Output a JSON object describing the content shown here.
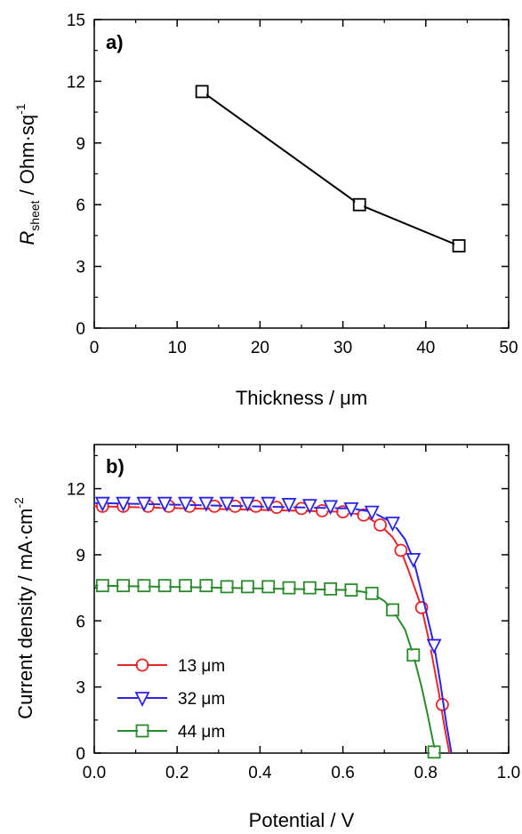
{
  "chart_data": [
    {
      "type": "line",
      "panel_label": "a)",
      "xlabel": "Thickness / μm",
      "ylabel": {
        "italic": "R",
        "subscript": "sheet",
        "rest": " / Ohm·sq",
        "superscript": "-1"
      },
      "xlim": [
        0,
        50
      ],
      "ylim": [
        0,
        15
      ],
      "xticks": [
        "0",
        "10",
        "20",
        "30",
        "40",
        "50"
      ],
      "yticks": [
        "0",
        "3",
        "6",
        "9",
        "12",
        "15"
      ],
      "grid": false,
      "series": [
        {
          "marker": "square",
          "color": "#000000",
          "x": [
            13,
            32,
            44
          ],
          "y": [
            11.5,
            6.0,
            4.0
          ]
        }
      ]
    },
    {
      "type": "line",
      "panel_label": "b)",
      "xlabel": "Potential / V",
      "ylabel": {
        "rest": "Current density / mA·cm",
        "superscript": "-2"
      },
      "xlim": [
        0.0,
        1.0
      ],
      "ylim": [
        0,
        14
      ],
      "xticks": [
        "0.0",
        "0.2",
        "0.4",
        "0.6",
        "0.8",
        "1.0"
      ],
      "yticks": [
        "0",
        "3",
        "6",
        "9",
        "12"
      ],
      "grid": false,
      "legend_position": "bottom-left",
      "series": [
        {
          "name": "13 μm",
          "marker": "circle",
          "color": "#e8262a",
          "x": [
            0.02,
            0.07,
            0.13,
            0.18,
            0.23,
            0.29,
            0.34,
            0.39,
            0.44,
            0.5,
            0.55,
            0.6,
            0.65,
            0.69,
            0.74,
            0.79,
            0.84
          ],
          "y": [
            11.2,
            11.2,
            11.2,
            11.2,
            11.2,
            11.2,
            11.2,
            11.2,
            11.15,
            11.1,
            11.0,
            10.95,
            10.8,
            10.35,
            9.2,
            6.6,
            2.2
          ],
          "curve_x": [
            0.0,
            0.6,
            0.65,
            0.69,
            0.72,
            0.74,
            0.76,
            0.79,
            0.81,
            0.83,
            0.845,
            0.857
          ],
          "curve_y": [
            11.2,
            10.95,
            10.8,
            10.35,
            9.8,
            9.2,
            8.2,
            6.6,
            4.9,
            2.9,
            1.2,
            0
          ]
        },
        {
          "name": "32 μm",
          "marker": "triangle-down",
          "color": "#2a24e6",
          "x": [
            0.02,
            0.07,
            0.12,
            0.17,
            0.22,
            0.27,
            0.32,
            0.37,
            0.42,
            0.47,
            0.52,
            0.57,
            0.62,
            0.67,
            0.72,
            0.77,
            0.82
          ],
          "y": [
            11.35,
            11.35,
            11.35,
            11.35,
            11.35,
            11.35,
            11.35,
            11.35,
            11.35,
            11.3,
            11.25,
            11.2,
            11.1,
            10.95,
            10.45,
            8.8,
            4.9
          ],
          "curve_x": [
            0.0,
            0.62,
            0.67,
            0.72,
            0.75,
            0.77,
            0.79,
            0.82,
            0.835,
            0.85,
            0.862
          ],
          "curve_y": [
            11.35,
            11.1,
            10.95,
            10.45,
            9.7,
            8.8,
            7.3,
            4.9,
            3.2,
            1.3,
            0
          ]
        },
        {
          "name": "44 μm",
          "marker": "square",
          "color": "#2b8a2b",
          "x": [
            0.02,
            0.07,
            0.12,
            0.17,
            0.22,
            0.27,
            0.32,
            0.37,
            0.42,
            0.47,
            0.52,
            0.57,
            0.62,
            0.67,
            0.72,
            0.77,
            0.82
          ],
          "y": [
            7.6,
            7.6,
            7.6,
            7.6,
            7.6,
            7.6,
            7.55,
            7.55,
            7.55,
            7.5,
            7.5,
            7.45,
            7.4,
            7.25,
            6.5,
            4.45,
            0.05
          ],
          "curve_x": [
            0.0,
            0.62,
            0.67,
            0.7,
            0.72,
            0.75,
            0.77,
            0.79,
            0.805,
            0.82,
            0.828
          ],
          "curve_y": [
            7.6,
            7.4,
            7.25,
            6.9,
            6.5,
            5.6,
            4.45,
            3.0,
            1.7,
            0.3,
            0
          ]
        }
      ]
    }
  ]
}
